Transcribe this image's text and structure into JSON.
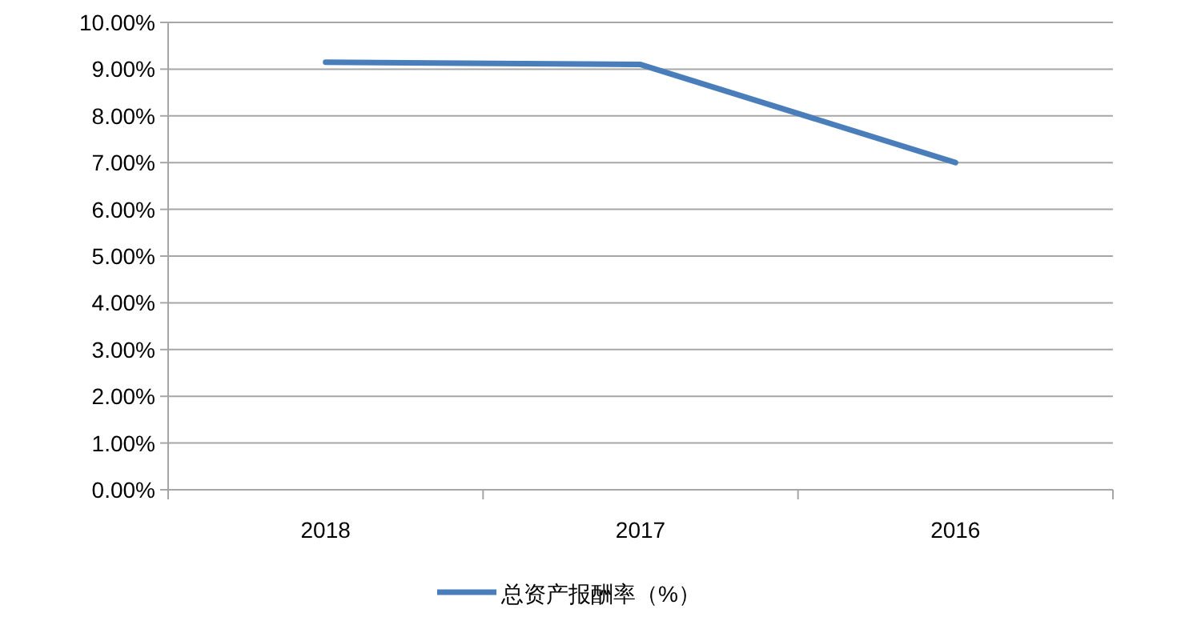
{
  "chart_data": {
    "type": "line",
    "categories": [
      "2018",
      "2017",
      "2016"
    ],
    "series": [
      {
        "name": "总资产报酬率（%）",
        "color": "#4a7ebb",
        "values": [
          9.15,
          9.1,
          7.0
        ]
      }
    ],
    "ylim": [
      0,
      10
    ],
    "yticks": [
      {
        "value": 0,
        "label": "0.00%"
      },
      {
        "value": 1,
        "label": "1.00%"
      },
      {
        "value": 2,
        "label": "2.00%"
      },
      {
        "value": 3,
        "label": "3.00%"
      },
      {
        "value": 4,
        "label": "4.00%"
      },
      {
        "value": 5,
        "label": "5.00%"
      },
      {
        "value": 6,
        "label": "6.00%"
      },
      {
        "value": 7,
        "label": "7.00%"
      },
      {
        "value": 8,
        "label": "8.00%"
      },
      {
        "value": 9,
        "label": "9.00%"
      },
      {
        "value": 10,
        "label": "10.00%"
      }
    ],
    "grid": "y",
    "legend": "bottom"
  }
}
